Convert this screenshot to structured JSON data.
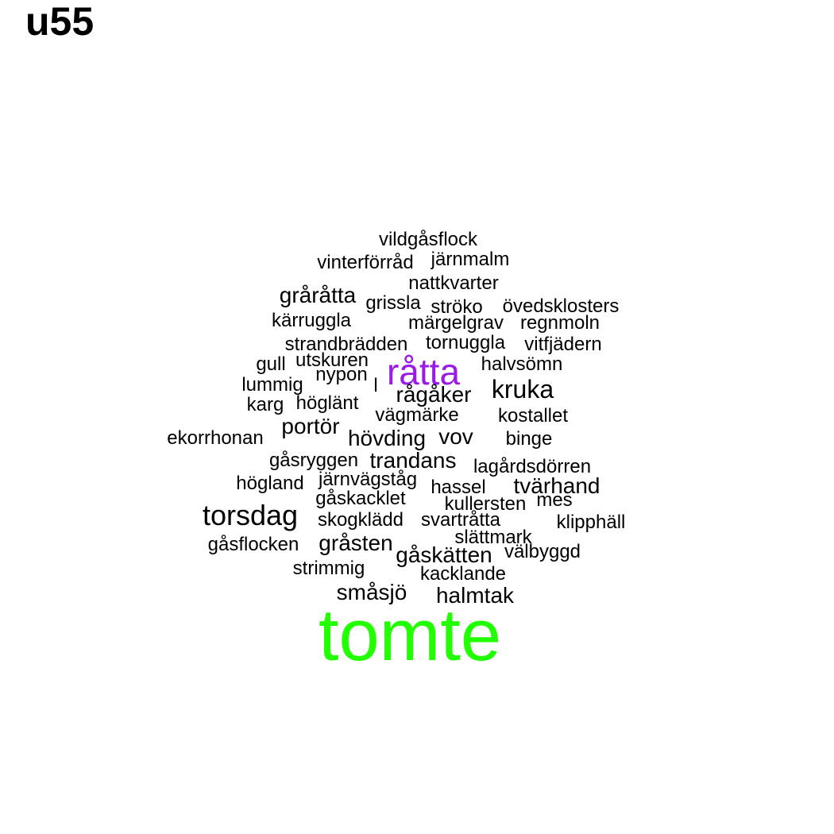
{
  "panel_label": "u55",
  "colors": {
    "default_word": "#000000",
    "highlight_purple": "#9a1ae6",
    "highlight_green": "#22ff00"
  },
  "words": [
    {
      "text": "vildgåsflock",
      "weight": 1,
      "color": "#000000"
    },
    {
      "text": "vinterförråd",
      "weight": 1,
      "color": "#000000"
    },
    {
      "text": "järnmalm",
      "weight": 1,
      "color": "#000000"
    },
    {
      "text": "nattkvarter",
      "weight": 1,
      "color": "#000000"
    },
    {
      "text": "gråråtta",
      "weight": 2,
      "color": "#000000"
    },
    {
      "text": "grissla",
      "weight": 1,
      "color": "#000000"
    },
    {
      "text": "ströko",
      "weight": 1,
      "color": "#000000"
    },
    {
      "text": "övedsklosters",
      "weight": 1,
      "color": "#000000"
    },
    {
      "text": "kärruggla",
      "weight": 1,
      "color": "#000000"
    },
    {
      "text": "märgelgrav",
      "weight": 1,
      "color": "#000000"
    },
    {
      "text": "regnmoln",
      "weight": 1,
      "color": "#000000"
    },
    {
      "text": "strandbrädden",
      "weight": 1,
      "color": "#000000"
    },
    {
      "text": "tornuggla",
      "weight": 1,
      "color": "#000000"
    },
    {
      "text": "vitfjädern",
      "weight": 1,
      "color": "#000000"
    },
    {
      "text": "gull",
      "weight": 1,
      "color": "#000000"
    },
    {
      "text": "utskuren",
      "weight": 1,
      "color": "#000000"
    },
    {
      "text": "råtta",
      "weight": 4,
      "color": "#9a1ae6"
    },
    {
      "text": "halvsömn",
      "weight": 1,
      "color": "#000000"
    },
    {
      "text": "nypon",
      "weight": 1,
      "color": "#000000"
    },
    {
      "text": "l",
      "weight": 1,
      "color": "#000000"
    },
    {
      "text": "lummig",
      "weight": 1,
      "color": "#000000"
    },
    {
      "text": "rågåker",
      "weight": 2,
      "color": "#000000"
    },
    {
      "text": "kruka",
      "weight": 3,
      "color": "#000000"
    },
    {
      "text": "karg",
      "weight": 1,
      "color": "#000000"
    },
    {
      "text": "höglänt",
      "weight": 1,
      "color": "#000000"
    },
    {
      "text": "vägmärke",
      "weight": 1,
      "color": "#000000"
    },
    {
      "text": "kostallet",
      "weight": 1,
      "color": "#000000"
    },
    {
      "text": "portör",
      "weight": 2,
      "color": "#000000"
    },
    {
      "text": "ekorrhonan",
      "weight": 1,
      "color": "#000000"
    },
    {
      "text": "hövding",
      "weight": 2,
      "color": "#000000"
    },
    {
      "text": "vov",
      "weight": 2,
      "color": "#000000"
    },
    {
      "text": "binge",
      "weight": 1,
      "color": "#000000"
    },
    {
      "text": "gåsryggen",
      "weight": 1,
      "color": "#000000"
    },
    {
      "text": "trandans",
      "weight": 2,
      "color": "#000000"
    },
    {
      "text": "lagårdsdörren",
      "weight": 1,
      "color": "#000000"
    },
    {
      "text": "högland",
      "weight": 1,
      "color": "#000000"
    },
    {
      "text": "järnvägståg",
      "weight": 1,
      "color": "#000000"
    },
    {
      "text": "hassel",
      "weight": 1,
      "color": "#000000"
    },
    {
      "text": "tvärhand",
      "weight": 2,
      "color": "#000000"
    },
    {
      "text": "gåskacklet",
      "weight": 1,
      "color": "#000000"
    },
    {
      "text": "kullersten",
      "weight": 1,
      "color": "#000000"
    },
    {
      "text": "mes",
      "weight": 1,
      "color": "#000000"
    },
    {
      "text": "torsdag",
      "weight": 3,
      "color": "#000000"
    },
    {
      "text": "skogklädd",
      "weight": 1,
      "color": "#000000"
    },
    {
      "text": "svartråtta",
      "weight": 1,
      "color": "#000000"
    },
    {
      "text": "klipphäll",
      "weight": 1,
      "color": "#000000"
    },
    {
      "text": "slättmark",
      "weight": 1,
      "color": "#000000"
    },
    {
      "text": "gåsflocken",
      "weight": 1,
      "color": "#000000"
    },
    {
      "text": "gråsten",
      "weight": 1,
      "color": "#000000"
    },
    {
      "text": "välbyggd",
      "weight": 1,
      "color": "#000000"
    },
    {
      "text": "gåskätten",
      "weight": 1,
      "color": "#000000"
    },
    {
      "text": "strimmig",
      "weight": 1,
      "color": "#000000"
    },
    {
      "text": "kacklande",
      "weight": 1,
      "color": "#000000"
    },
    {
      "text": "småsjö",
      "weight": 2,
      "color": "#000000"
    },
    {
      "text": "halmtak",
      "weight": 2,
      "color": "#000000"
    },
    {
      "text": "tomte",
      "weight": 5,
      "color": "#22ff00"
    }
  ]
}
